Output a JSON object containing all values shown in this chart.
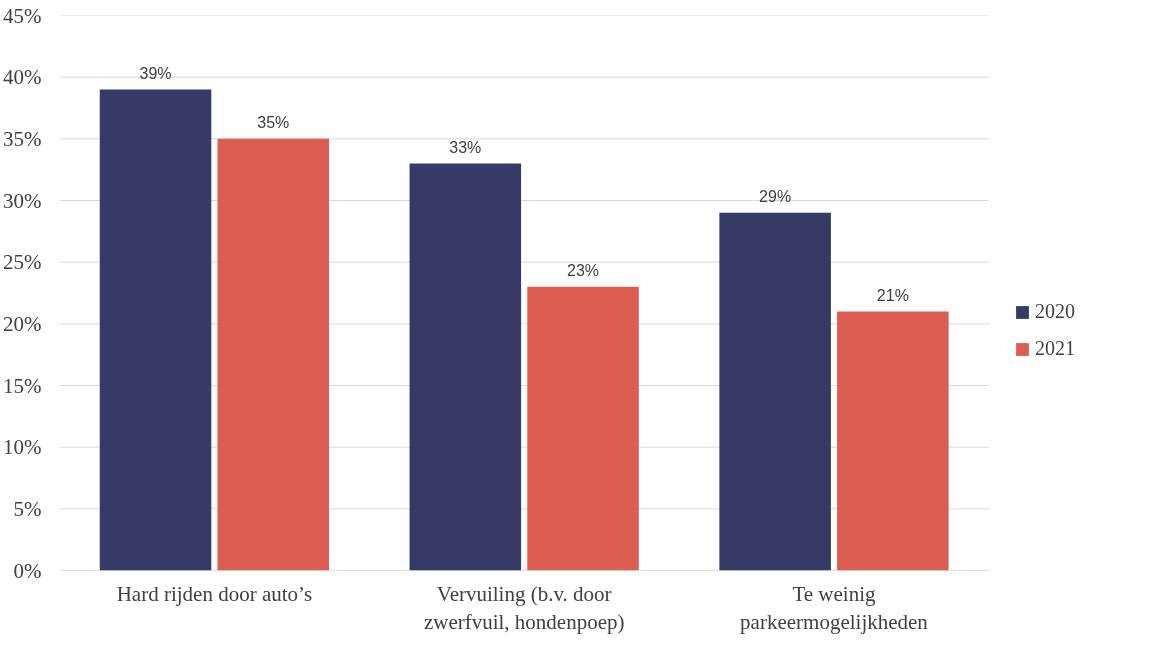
{
  "chart_data": {
    "type": "bar",
    "categories": [
      "Hard rijden door auto’s",
      "Vervuiling (b.v. door zwerfvuil, hondenpoep)",
      "Te weinig parkeermogelijkheden"
    ],
    "series": [
      {
        "name": "2020",
        "color": "#363a66",
        "values": [
          39,
          33,
          29
        ],
        "value_labels": [
          "39%",
          "33%",
          "29%"
        ]
      },
      {
        "name": "2021",
        "color": "#dc5e52",
        "values": [
          35,
          23,
          21
        ],
        "value_labels": [
          "35%",
          "23%",
          "21%"
        ]
      }
    ],
    "ylim": [
      0,
      45
    ],
    "yticks": [
      {
        "value": 0,
        "label": "0%"
      },
      {
        "value": 5,
        "label": "5%"
      },
      {
        "value": 10,
        "label": "10%"
      },
      {
        "value": 15,
        "label": "15%"
      },
      {
        "value": 20,
        "label": "20%"
      },
      {
        "value": 25,
        "label": "25%"
      },
      {
        "value": 30,
        "label": "30%"
      },
      {
        "value": 35,
        "label": "35%"
      },
      {
        "value": 40,
        "label": "40%"
      },
      {
        "value": 45,
        "label": "45%"
      }
    ],
    "grid": "y",
    "legend": "right"
  }
}
